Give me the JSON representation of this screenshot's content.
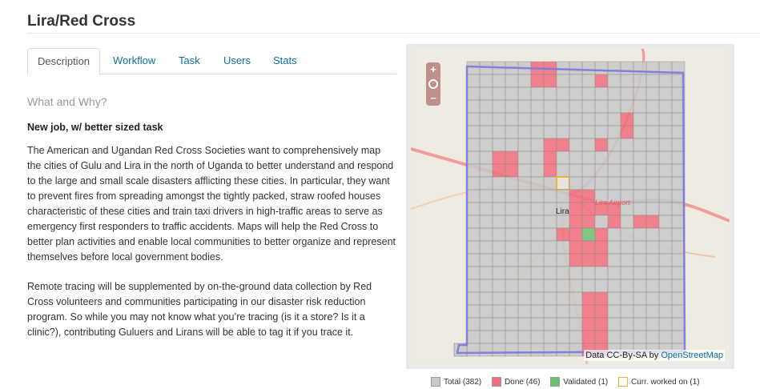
{
  "page": {
    "title": "Lira/Red Cross"
  },
  "tabs": [
    {
      "label": "Description",
      "active": true
    },
    {
      "label": "Workflow",
      "active": false
    },
    {
      "label": "Task",
      "active": false
    },
    {
      "label": "Users",
      "active": false
    },
    {
      "label": "Stats",
      "active": false
    }
  ],
  "content": {
    "section_heading": "What and Why?",
    "subheading": "New job, w/ better sized task",
    "paragraph1": "The American and Ugandan Red Cross Societies want to comprehensively map the cities of Gulu and Lira in the north of Uganda to better understand and respond to the large and small scale disasters afflicting these cities. In particular, they want to prevent fires from spreading amongst the tightly packed, straw roofed houses characteristic of these cities and train taxi drivers in high-traffic areas to serve as emergency first responders to traffic accidents. Maps will help the Red Cross to better plan activities and enable local communities to better organize and represent themselves before local government bodies.",
    "paragraph2": "Remote tracing will be supplemented by on-the-ground data collection by Red Cross volunteers and communities participating in our disaster risk reduction program. So while you may not know what you’re tracing (is it a store? Is it a clinic?), contributing Guluers and Lirans will be able to tag it if you trace it."
  },
  "map": {
    "zoom_in": "+",
    "zoom_out": "−",
    "globe_icon": "globe-icon",
    "attribution_text": "Data CC-By-SA by",
    "attribution_link": "OpenStreetMap",
    "city_label": "Lira",
    "airport_label": "Lira Airport",
    "colors": {
      "total": "#c8c8c8",
      "done": "#f26d7d",
      "validated": "#6cbf6c",
      "current": "#f0b040",
      "boundary": "#7a7ae0"
    }
  },
  "legend": [
    {
      "label": "Total (382)",
      "color": "#c8c8c8"
    },
    {
      "label": "Done (46)",
      "color": "#f26d7d"
    },
    {
      "label": "Validated (1)",
      "color": "#6cbf6c"
    },
    {
      "label": "Curr. worked on (1)",
      "color": "#ffffff"
    }
  ]
}
